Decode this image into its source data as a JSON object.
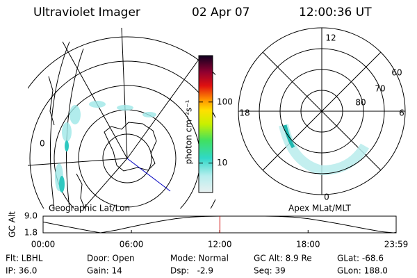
{
  "header": {
    "title": "Ultraviolet Imager",
    "date": "02 Apr 07",
    "time": "12:00:36 UT"
  },
  "colorbar": {
    "label": "photon cm⁻²s⁻¹",
    "log": true,
    "lim": [
      3.3,
      575
    ],
    "ticks": [
      10,
      100
    ]
  },
  "geographic": {
    "title": "Geographic Lat/Lon",
    "label": "0"
  },
  "magnetic": {
    "title": "Apex MLat/MLT",
    "mlt_labels": [
      "12",
      "18",
      "6",
      "0"
    ],
    "lat_labels": [
      80,
      70,
      60
    ]
  },
  "chart_data": {
    "type": "line",
    "ylabel": "GC Alt",
    "x": [
      0,
      1,
      2,
      3,
      3.9,
      5,
      6,
      7,
      8,
      9,
      10,
      11,
      12,
      13,
      14,
      15,
      16,
      17,
      18,
      19,
      20,
      21,
      22,
      23,
      23.8,
      23.983
    ],
    "values": [
      6.5,
      5.2,
      4.0,
      2.8,
      1.8,
      3.0,
      4.4,
      5.7,
      6.9,
      7.9,
      8.6,
      8.9,
      9.0,
      9.0,
      9.0,
      9.0,
      8.9,
      8.6,
      7.9,
      6.9,
      5.8,
      4.6,
      3.4,
      2.3,
      1.8,
      2.0
    ],
    "color": "#000000",
    "xlim": [
      0,
      23.983
    ],
    "xticks": [
      {
        "value": 0,
        "label": "00:00"
      },
      {
        "value": 6,
        "label": "06:00"
      },
      {
        "value": 12,
        "label": "12:00"
      },
      {
        "value": 18,
        "label": "18:00"
      },
      {
        "value": 23.983,
        "label": "23:59"
      }
    ],
    "ylim": [
      1.8,
      9.0
    ],
    "yticks": [
      {
        "value": 9.0,
        "label": "9.0"
      },
      {
        "value": 1.8,
        "label": "1.8"
      }
    ],
    "marker": 12.01,
    "marker_color": "#cc0000"
  },
  "info": {
    "rows": [
      [
        "Flt: LBHL",
        "Door: Open",
        "Mode: Normal",
        "GC Alt: 8.9 Re",
        "GLat: -68.6"
      ],
      [
        "IP: 36.0",
        "Gain: 14",
        "Dsp:   -2.9",
        "Seq: 39",
        "GLon: 188.0"
      ]
    ]
  }
}
